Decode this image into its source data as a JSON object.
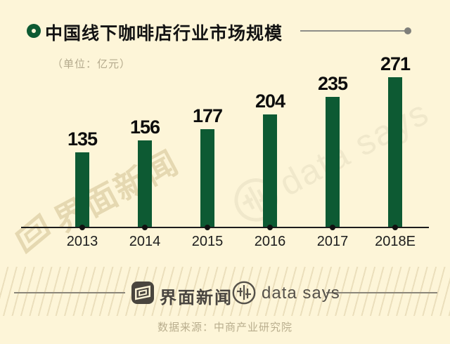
{
  "title": "中国线下咖啡店行业市场规模",
  "unit_label": "（单位：亿元）",
  "chart_data": {
    "type": "bar",
    "categories": [
      "2013",
      "2014",
      "2015",
      "2016",
      "2017",
      "2018E"
    ],
    "values": [
      135,
      156,
      177,
      204,
      235,
      271
    ],
    "title": "中国线下咖啡店行业市场规模",
    "xlabel": "",
    "ylabel": "亿元",
    "ylim": [
      0,
      280
    ],
    "grid": false,
    "legend": "none",
    "bar_color": "#0d5a33",
    "background_color": "#fdf5d8"
  },
  "watermarks": {
    "left_text": "界面新闻",
    "right_text": "data says"
  },
  "footer": {
    "brand_name": "界面新闻",
    "datasays_name": "data says",
    "source": "数据来源：中商产业研究院"
  }
}
